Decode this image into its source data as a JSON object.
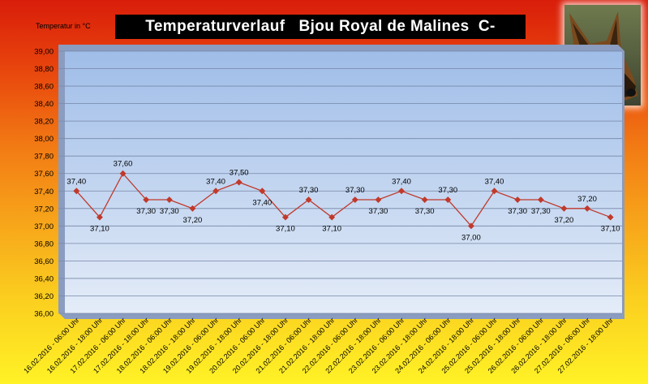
{
  "chart_data": {
    "type": "line",
    "title": "Temperaturverlauf   Bjou Royal de Malines  C-",
    "ylabel": "Temperatur in °C",
    "xlabel": "",
    "ylim": [
      36.0,
      39.0
    ],
    "ytick_step": 0.2,
    "grid": true,
    "categories": [
      "16.02.2016 - 06:00 Uhr",
      "16.02.2016 - 18:00 Uhr",
      "17.02.2016 - 06:00 Uhr",
      "17.02.2016 - 18:00 Uhr",
      "18.02.2016 - 06:00 Uhr",
      "18.02.2016 - 18:00 Uhr",
      "19.02.2016 - 06:00 Uhr",
      "19.02.2016 - 18:00 Uhr",
      "20.02.2016 - 06:00 Uhr",
      "20.02.2016 - 18:00 Uhr",
      "21.02.2016 - 06:00 Uhr",
      "21.02.2016 - 18:00 Uhr",
      "22.02.2016 - 06:00 Uhr",
      "22.02.2016 - 18:00 Uhr",
      "23.02.2016 - 06:00 Uhr",
      "23.02.2016 - 18:00 Uhr",
      "24.02.2016 - 06:00 Uhr",
      "24.02.2016 - 18:00 Uhr",
      "25.02.2016 - 06:00 Uhr",
      "25.02.2016 - 18:00 Uhr",
      "26.02.2016 - 06:00 Uhr",
      "26.02.2016 - 18:00 Uhr",
      "27.02.2016 - 06:00 Uhr",
      "27.02.2016 - 18:00 Uhr"
    ],
    "series": [
      {
        "values": [
          37.4,
          37.1,
          37.6,
          37.3,
          37.3,
          37.2,
          37.4,
          37.5,
          37.4,
          37.1,
          37.3,
          37.1,
          37.3,
          37.3,
          37.4,
          37.3,
          37.3,
          37.0,
          37.4,
          37.3,
          37.3,
          37.2,
          37.2,
          37.1
        ],
        "color": "#c0392b"
      }
    ],
    "data_labels": [
      "37,40",
      "37,10",
      "37,60",
      "37,30",
      "37,30",
      "37,20",
      "37,40",
      "37,50",
      "37,40",
      "37,10",
      "37,30",
      "37,10",
      "37,30",
      "37,30",
      "37,40",
      "37,30",
      "37,30",
      "37,00",
      "37,40",
      "37,30",
      "37,30",
      "37,20",
      "37,20",
      "37,10"
    ],
    "label_position": [
      "above",
      "below",
      "above",
      "below",
      "below",
      "below",
      "above",
      "above",
      "below",
      "below",
      "above",
      "below",
      "above",
      "below",
      "above",
      "below",
      "above",
      "below",
      "above",
      "below",
      "below",
      "below",
      "above",
      "below"
    ],
    "ytick_labels": [
      "36,00",
      "36,20",
      "36,40",
      "36,60",
      "36,80",
      "37,00",
      "37,20",
      "37,40",
      "37,60",
      "37,80",
      "38,00",
      "38,20",
      "38,40",
      "38,60",
      "38,80",
      "39,00"
    ]
  }
}
